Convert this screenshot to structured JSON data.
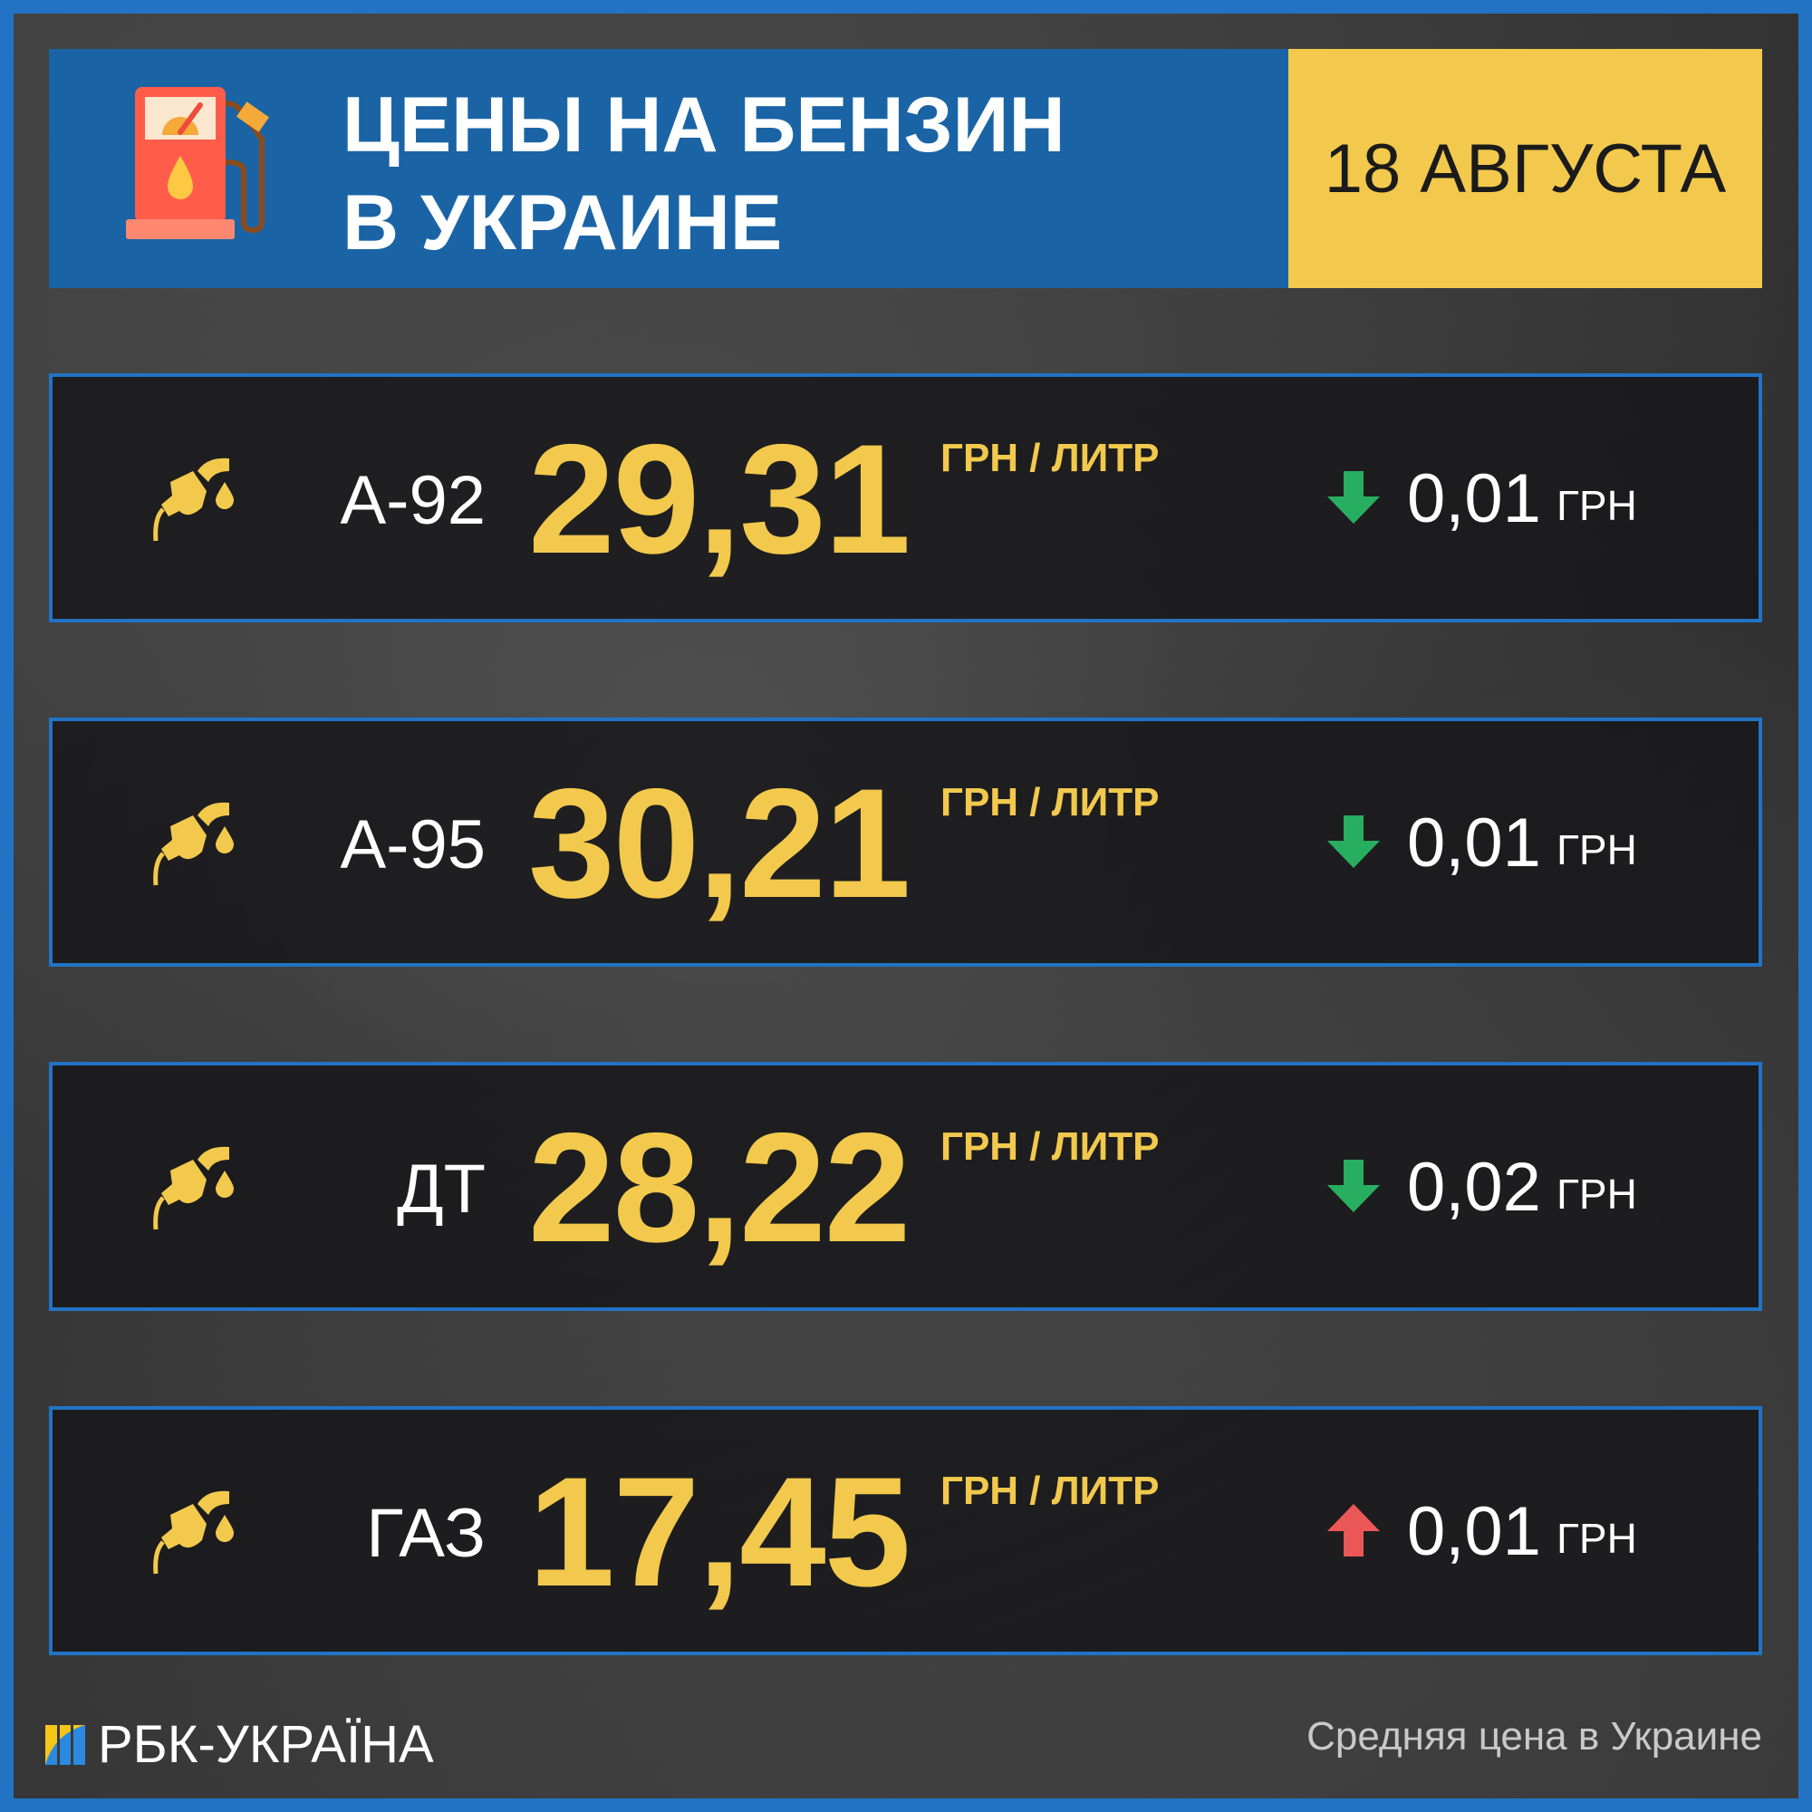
{
  "header": {
    "title_line1": "ЦЕНЫ НА БЕНЗИН",
    "title_line2": "В УКРАИНЕ",
    "date": "18 АВГУСТА",
    "icon": "fuel-pump-icon"
  },
  "colors": {
    "accent": "#f2c94c",
    "header_bg": "#1a64a6",
    "border": "#2273c4",
    "down": "#27ae60",
    "up": "#eb5757"
  },
  "rows": [
    {
      "label": "А-92",
      "price": "29,31",
      "unit": "ГРН / ЛИТР",
      "direction": "down",
      "change": "0,01",
      "currency": "ГРН"
    },
    {
      "label": "А-95",
      "price": "30,21",
      "unit": "ГРН / ЛИТР",
      "direction": "down",
      "change": "0,01",
      "currency": "ГРН"
    },
    {
      "label": "ДТ",
      "price": "28,22",
      "unit": "ГРН / ЛИТР",
      "direction": "down",
      "change": "0,02",
      "currency": "ГРН"
    },
    {
      "label": "ГАЗ",
      "price": "17,45",
      "unit": "ГРН / ЛИТР",
      "direction": "up",
      "change": "0,01",
      "currency": "ГРН"
    }
  ],
  "footer": {
    "logo": "РБК-УКРАЇНА",
    "note": "Средняя цена в Украине"
  }
}
